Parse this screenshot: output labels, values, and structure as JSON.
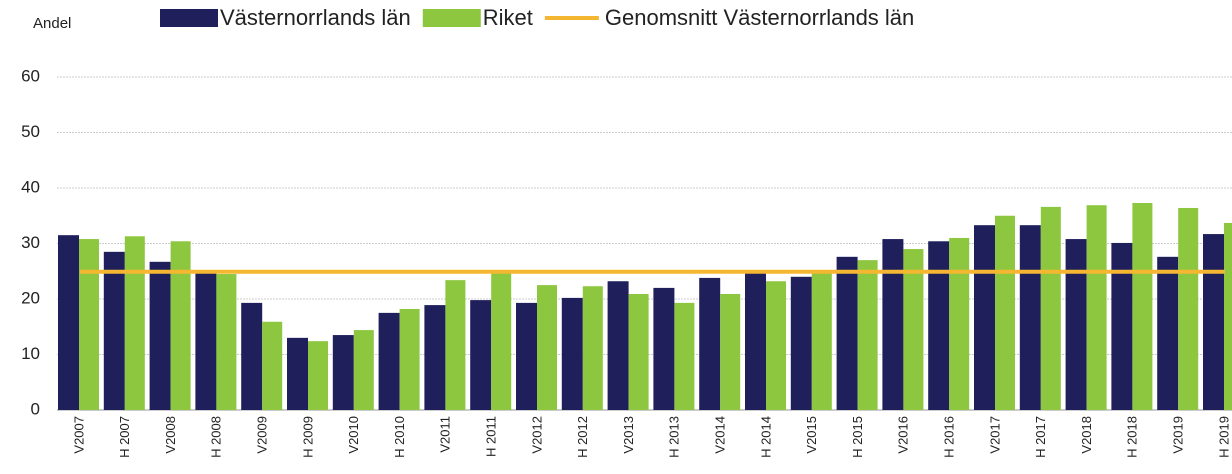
{
  "chart_data": {
    "type": "bar",
    "y_label": "Andel",
    "categories": [
      "V2007",
      "H 2007",
      "V2008",
      "H 2008",
      "V2009",
      "H 2009",
      "V2010",
      "H 2010",
      "V2011",
      "H 2011",
      "V2012",
      "H 2012",
      "V2013",
      "H 2013",
      "V2014",
      "H 2014",
      "V2015",
      "H 2015",
      "V2016",
      "H 2016",
      "V2017",
      "H 2017",
      "V2018",
      "H 2018",
      "V2019",
      "H 2019"
    ],
    "series": [
      {
        "name": "Västernorrlands län",
        "color": "#1f1f5c",
        "type": "bar",
        "values": [
          31.5,
          28.5,
          26.7,
          25,
          19.3,
          13,
          13.5,
          17.5,
          18.9,
          19.8,
          19.3,
          20.2,
          23.2,
          22,
          23.8,
          25,
          24,
          27.6,
          30.8,
          30.4,
          33.3,
          33.3,
          30.8,
          30.1,
          27.6,
          31.7
        ]
      },
      {
        "name": "Riket",
        "color": "#8dc63f",
        "type": "bar",
        "values": [
          30.8,
          31.3,
          30.4,
          24.5,
          15.9,
          12.4,
          14.4,
          18.2,
          23.4,
          25.2,
          22.5,
          22.3,
          20.9,
          19.3,
          20.9,
          23.2,
          25.2,
          27,
          29,
          31,
          35,
          36.6,
          36.9,
          37.3,
          36.4,
          33.7
        ]
      },
      {
        "name": "Genomsnitt Västernorrlands län",
        "color": "#f5b731",
        "type": "line",
        "values": [
          24.9,
          24.9,
          24.9,
          24.9,
          24.9,
          24.9,
          24.9,
          24.9,
          24.9,
          24.9,
          24.9,
          24.9,
          24.9,
          24.9,
          24.9,
          24.9,
          24.9,
          24.9,
          24.9,
          24.9,
          24.9,
          24.9,
          24.9,
          24.9,
          24.9,
          24.9
        ]
      }
    ],
    "ylim": [
      0,
      60
    ],
    "yticks": [
      0,
      10,
      20,
      30,
      40,
      50,
      60
    ],
    "grid": true
  }
}
